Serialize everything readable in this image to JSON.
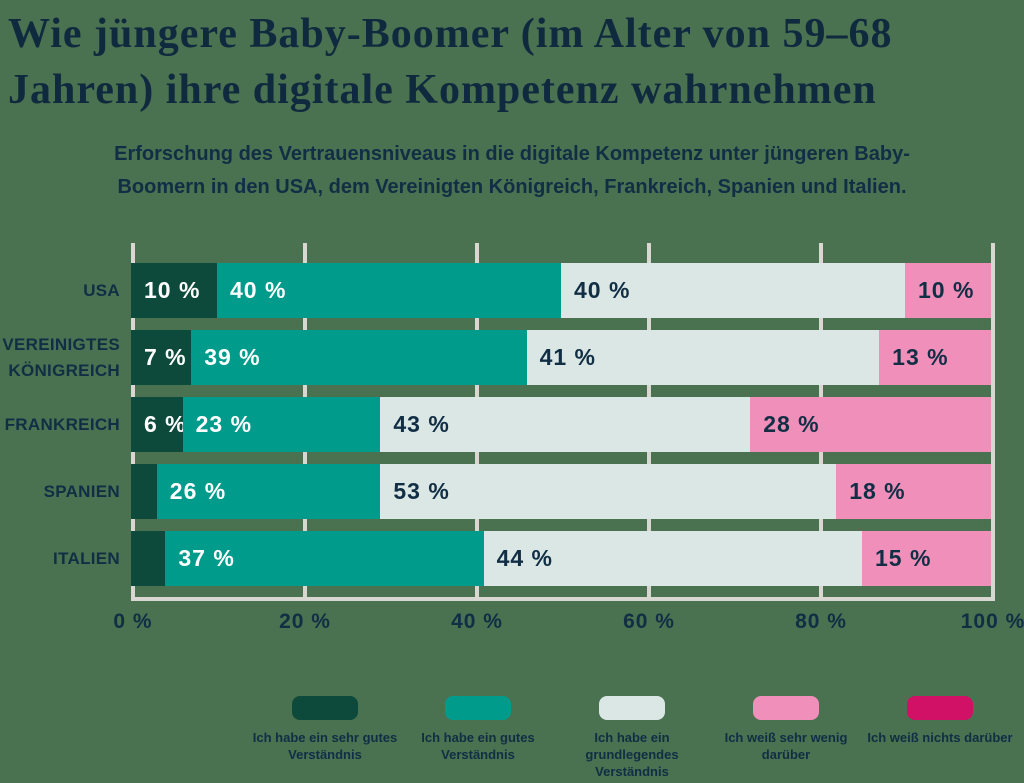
{
  "title": {
    "full": "Wie jüngere Baby-Boomer (im Alter von 59–68 Jahren) ihre digitale Kompetenz wahrnehmen",
    "lines": [
      "Wie jüngere Baby-Boomer (im Alter von 59–68",
      "Jahren) ihre digitale Kompetenz wahrnehmen"
    ]
  },
  "subtitle": {
    "full": "Erforschung des Vertrauensniveaus in die digitale Kompetenz unter jüngeren Baby-Boomern in den USA, dem Vereinigten Königreich, Frankreich, Spanien und Italien.",
    "lines": [
      "Erforschung des Vertrauensniveaus in die digitale Kompetenz unter jüngeren Baby-",
      "Boomern in den USA, dem Vereinigten Königreich, Frankreich, Spanien und Italien."
    ]
  },
  "colors": {
    "background": "#4a7150",
    "text_navy": "#112e45",
    "gridline": "#d9d7d2",
    "series": [
      "#0e4a3c",
      "#009b8b",
      "#dae7e4",
      "#f08fba",
      "#d01166"
    ],
    "series_text": [
      "#ffffff",
      "#ffffff",
      "#112e45",
      "#112e45",
      "#ffffff"
    ]
  },
  "chart_data": {
    "type": "bar",
    "variant": "horizontal-stacked-100",
    "title": "Wie jüngere Baby-Boomer (im Alter von 59–68 Jahren) ihre digitale Kompetenz wahrnehmen",
    "xlabel": "",
    "ylabel": "",
    "xlim": [
      0,
      100
    ],
    "grid": true,
    "legend_position": "bottom",
    "x_ticks": [
      "0 %",
      "20 %",
      "40 %",
      "60 %",
      "80 %",
      "100 %"
    ],
    "x_tick_values": [
      0,
      20,
      40,
      60,
      80,
      100
    ],
    "series_names": [
      "Ich habe ein sehr gutes Verständnis",
      "Ich habe ein gutes Verständnis",
      "Ich habe ein grundlegendes Verständnis",
      "Ich weiß sehr wenig darüber",
      "Ich weiß nichts darüber"
    ],
    "categories": [
      "USA",
      "VEREINIGTES KÖNIGREICH",
      "FRANKREICH",
      "SPANIEN",
      "ITALIEN"
    ],
    "rows": [
      {
        "label": "USA",
        "label_lines": [
          "USA"
        ],
        "values": [
          10,
          40,
          40,
          10,
          0
        ],
        "value_labels": [
          "10 %",
          "40 %",
          "40 %",
          "10 %",
          ""
        ]
      },
      {
        "label": "VEREINIGTES KÖNIGREICH",
        "label_lines": [
          "VEREINIGTES",
          "KÖNIGREICH"
        ],
        "values": [
          7,
          39,
          41,
          13,
          0
        ],
        "value_labels": [
          "7 %",
          "39 %",
          "41 %",
          "13 %",
          ""
        ]
      },
      {
        "label": "FRANKREICH",
        "label_lines": [
          "FRANKREICH"
        ],
        "values": [
          6,
          23,
          43,
          28,
          0
        ],
        "value_labels": [
          "6 %",
          "23 %",
          "43 %",
          "28 %",
          ""
        ]
      },
      {
        "label": "SPANIEN",
        "label_lines": [
          "SPANIEN"
        ],
        "values": [
          3,
          26,
          53,
          18,
          0
        ],
        "value_labels": [
          "",
          "26 %",
          "53 %",
          "18 %",
          ""
        ]
      },
      {
        "label": "ITALIEN",
        "label_lines": [
          "ITALIEN"
        ],
        "values": [
          4,
          37,
          44,
          15,
          0
        ],
        "value_labels": [
          "",
          "37 %",
          "44 %",
          "15 %",
          ""
        ]
      }
    ],
    "legend": [
      {
        "label": "Ich habe ein sehr gutes Verständnis",
        "color": "#0e4a3c"
      },
      {
        "label": "Ich habe ein gutes Verständnis",
        "color": "#009b8b"
      },
      {
        "label": "Ich habe ein grundlegendes Verständnis",
        "color": "#dae7e4"
      },
      {
        "label": "Ich weiß sehr wenig darüber",
        "color": "#f08fba"
      },
      {
        "label": "Ich weiß nichts darüber",
        "color": "#d01166"
      }
    ]
  }
}
